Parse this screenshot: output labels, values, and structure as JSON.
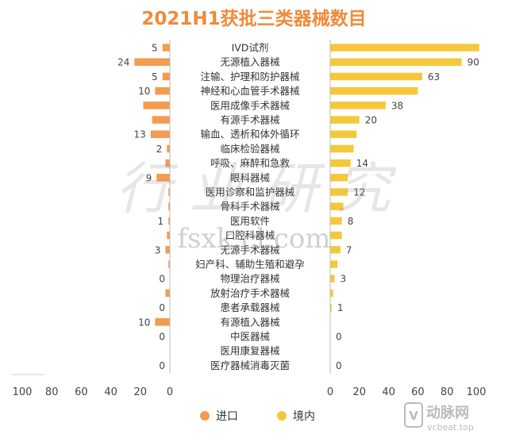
{
  "chart_data": {
    "type": "bar",
    "title": "2021H1获批三类器械数目",
    "categories": [
      "IVD试剂",
      "无源植入器械",
      "注输、护理和防护器械",
      "神经和心血管手术器械",
      "医用成像手术器械",
      "有源手术器械",
      "输血、透析和体外循环",
      "临床检验器械",
      "呼吸、麻醉和急救",
      "眼科器械",
      "医用诊察和监护器械",
      "骨科手术器械",
      "医用软件",
      "口腔科器械",
      "无源手术器械",
      "妇产科、辅助生殖和避孕",
      "物理治疗器械",
      "放射治疗手术器械",
      "患者承载器械",
      "有源植入器械",
      "中医器械",
      "医用康复器械",
      "医疗器械消毒灭菌"
    ],
    "series": [
      {
        "name": "进口",
        "color": "#F39B4F",
        "values": [
          5,
          24,
          5,
          10,
          18,
          12,
          13,
          2,
          3,
          9,
          1,
          1,
          1,
          2,
          3,
          1,
          0,
          3,
          0,
          10,
          0,
          0,
          0
        ],
        "labels": [
          "5",
          "24",
          "5",
          "10",
          "",
          "",
          "13",
          "2",
          "",
          "9",
          "",
          "",
          "1",
          "",
          "3",
          "",
          "0",
          "",
          "0",
          "10",
          "0",
          "",
          "0"
        ]
      },
      {
        "name": "境内",
        "color": "#F5C83C",
        "values": [
          102,
          90,
          63,
          60,
          38,
          20,
          18,
          16,
          14,
          12,
          12,
          9,
          8,
          8,
          7,
          5,
          3,
          2,
          1,
          0,
          0,
          0,
          0
        ],
        "labels": [
          "",
          "90",
          "63",
          "",
          "38",
          "20",
          "",
          "",
          "14",
          "",
          "12",
          "",
          "8",
          "",
          "7",
          "",
          "3",
          "",
          "1",
          "",
          "0",
          "",
          "0"
        ]
      }
    ],
    "left_axis": {
      "ticks": [
        "100",
        "80",
        "60",
        "40",
        "20",
        "0"
      ],
      "range": [
        0,
        100
      ]
    },
    "right_axis": {
      "ticks": [
        "0",
        "20",
        "40",
        "60",
        "80",
        "100"
      ],
      "range": [
        0,
        100
      ]
    },
    "legend": {
      "position": "bottom",
      "items": [
        "进口",
        "境内"
      ]
    },
    "grid": false
  },
  "watermark": {
    "main": "fsxk.cl.com",
    "script": "行业研究",
    "logo_text": "动脉网",
    "logo_sub": "vcbeat.top"
  }
}
